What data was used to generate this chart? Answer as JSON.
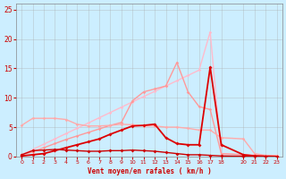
{
  "background_color": "#cceeff",
  "grid_color": "#aaaaaa",
  "xlabel": "Vent moyen/en rafales ( km/h )",
  "xlabel_color": "#cc0000",
  "xlim": [
    -0.5,
    23.5
  ],
  "ylim": [
    0,
    26
  ],
  "xticks": [
    0,
    1,
    2,
    3,
    4,
    5,
    6,
    7,
    8,
    9,
    10,
    11,
    12,
    13,
    14,
    15,
    16,
    17,
    18,
    20,
    21,
    22,
    23
  ],
  "yticks": [
    0,
    5,
    10,
    15,
    20,
    25
  ],
  "series": [
    {
      "x": [
        0,
        1,
        2,
        3,
        4,
        5,
        6,
        7,
        8,
        9,
        10,
        11,
        12,
        13,
        14,
        15,
        16,
        17,
        18,
        20,
        21,
        22,
        23
      ],
      "y": [
        0.3,
        1.2,
        2.1,
        3.0,
        3.9,
        4.8,
        5.7,
        6.6,
        7.5,
        8.4,
        9.3,
        10.2,
        11.1,
        12.0,
        12.9,
        13.8,
        14.7,
        21.2,
        0.5,
        0.3,
        0.2,
        0.1,
        0.1
      ],
      "color": "#ffbbcc",
      "lw": 1.0,
      "marker": "D",
      "ms": 1.8
    },
    {
      "x": [
        0,
        1,
        2,
        3,
        4,
        5,
        6,
        7,
        8,
        9,
        10,
        11,
        12,
        13,
        14,
        15,
        16,
        17,
        18,
        20,
        21,
        22,
        23
      ],
      "y": [
        0.3,
        0.8,
        1.5,
        2.2,
        2.9,
        3.5,
        4.1,
        4.7,
        5.3,
        5.8,
        9.5,
        11.0,
        11.5,
        12.0,
        16.0,
        11.0,
        8.5,
        8.0,
        0.5,
        0.3,
        0.2,
        0.1,
        0.1
      ],
      "color": "#ff9999",
      "lw": 1.0,
      "marker": "D",
      "ms": 1.8
    },
    {
      "x": [
        0,
        1,
        2,
        3,
        4,
        5,
        6,
        7,
        8,
        9,
        10,
        11,
        12,
        13,
        14,
        15,
        16,
        17,
        18,
        20,
        21,
        22,
        23
      ],
      "y": [
        5.3,
        6.5,
        6.5,
        6.5,
        6.3,
        5.5,
        5.2,
        5.2,
        5.3,
        5.5,
        5.4,
        5.2,
        5.2,
        5.0,
        5.0,
        4.8,
        4.5,
        4.5,
        3.2,
        3.0,
        0.5,
        0.2,
        0.2
      ],
      "color": "#ffaaaa",
      "lw": 1.0,
      "marker": "D",
      "ms": 1.8
    },
    {
      "x": [
        0,
        1,
        2,
        3,
        4,
        5,
        6,
        7,
        8,
        9,
        10,
        11,
        12,
        13,
        14,
        15,
        16,
        17,
        18,
        20,
        21,
        22,
        23
      ],
      "y": [
        0.1,
        0.3,
        0.5,
        1.0,
        1.5,
        2.0,
        2.5,
        3.0,
        3.8,
        4.5,
        5.2,
        5.3,
        5.5,
        3.2,
        2.2,
        2.0,
        2.0,
        15.2,
        2.0,
        0.3,
        0.1,
        0.05,
        0.0
      ],
      "color": "#dd0000",
      "lw": 1.3,
      "marker": "D",
      "ms": 2.0
    },
    {
      "x": [
        0,
        1,
        2,
        3,
        4,
        5,
        6,
        7,
        8,
        9,
        10,
        11,
        12,
        13,
        14,
        15,
        16,
        17,
        18,
        20,
        21,
        22,
        23
      ],
      "y": [
        0.3,
        1.0,
        1.1,
        1.2,
        1.1,
        1.0,
        0.9,
        0.9,
        1.0,
        1.0,
        1.1,
        1.0,
        0.9,
        0.7,
        0.5,
        0.3,
        0.3,
        0.2,
        0.1,
        0.05,
        0.05,
        0.0,
        0.0
      ],
      "color": "#cc0000",
      "lw": 1.0,
      "marker": "D",
      "ms": 2.0
    }
  ]
}
